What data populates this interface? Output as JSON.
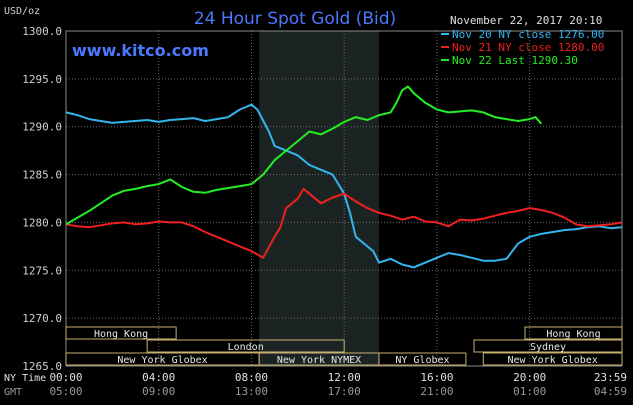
{
  "chart_data": {
    "type": "line",
    "title": "24 Hour Spot Gold (Bid)",
    "units_label": "USD/oz",
    "timestamp": "November 22, 2017 20:10",
    "watermark": "www.kitco.com",
    "ylim": [
      1265.0,
      1300.0
    ],
    "y_ticks": [
      "1300.0",
      "1295.0",
      "1290.0",
      "1285.0",
      "1280.0",
      "1275.0",
      "1270.0",
      "1265.0"
    ],
    "x_axis_rows": [
      {
        "label": "NY Time",
        "ticks": [
          "00:00",
          "04:00",
          "08:00",
          "12:00",
          "16:00",
          "20:00",
          "23:59"
        ]
      },
      {
        "label": "GMT",
        "ticks": [
          "05:00",
          "09:00",
          "13:00",
          "17:00",
          "21:00",
          "01:00",
          "04:59"
        ]
      }
    ],
    "session_markets": [
      {
        "name": "Hong Kong",
        "row": 0,
        "start": 0.0,
        "end": 4.75
      },
      {
        "name": "Hong Kong",
        "row": 0,
        "start": 19.8,
        "end": 23.983
      },
      {
        "name": "London",
        "row": 1,
        "start": 3.5,
        "end": 12.0
      },
      {
        "name": "Sydney",
        "row": 1,
        "start": 17.6,
        "end": 23.983
      },
      {
        "name": "New York Globex",
        "row": 2,
        "start": 0.0,
        "end": 8.33
      },
      {
        "name": "New York NYMEX",
        "row": 2,
        "start": 8.33,
        "end": 13.5
      },
      {
        "name": "NY Globex",
        "row": 2,
        "start": 13.5,
        "end": 17.25
      },
      {
        "name": "New York Globex",
        "row": 2,
        "start": 18.0,
        "end": 23.983
      }
    ],
    "highlight_range": [
      8.33,
      13.5
    ],
    "colors": {
      "background": "#000000",
      "grid": "#6b6b6b",
      "title": "#4a78ff",
      "axis_text": "#d0d0d0",
      "market_box": "#c8b070",
      "highlight": "#1c2423"
    },
    "series": [
      {
        "name": "Nov 20 NY close 1276.00",
        "color": "#33b5ee",
        "x": [
          0,
          0.5,
          1,
          1.5,
          2,
          2.5,
          3,
          3.5,
          4,
          4.5,
          5,
          5.5,
          6,
          6.5,
          7,
          7.5,
          8,
          8.25,
          8.75,
          9,
          9.5,
          10,
          10.5,
          11,
          11.5,
          12,
          12.25,
          12.5,
          13,
          13.25,
          13.5,
          14,
          14.5,
          15,
          15.5,
          16,
          16.5,
          17,
          17.5,
          18,
          18.5,
          19,
          19.5,
          20,
          20.5,
          21,
          21.5,
          22,
          22.5,
          23,
          23.5,
          23.983
        ],
        "y": [
          1291.5,
          1291.2,
          1290.8,
          1290.6,
          1290.4,
          1290.5,
          1290.6,
          1290.7,
          1290.5,
          1290.7,
          1290.8,
          1290.9,
          1290.6,
          1290.8,
          1291.0,
          1291.8,
          1292.3,
          1291.8,
          1289.5,
          1288.0,
          1287.5,
          1287.0,
          1286.0,
          1285.5,
          1285.0,
          1283.0,
          1281.0,
          1278.5,
          1277.5,
          1277.0,
          1275.8,
          1276.2,
          1275.6,
          1275.3,
          1275.8,
          1276.3,
          1276.8,
          1276.6,
          1276.3,
          1276.0,
          1276.0,
          1276.2,
          1277.8,
          1278.5,
          1278.8,
          1279.0,
          1279.2,
          1279.3,
          1279.5,
          1279.6,
          1279.4,
          1279.5
        ]
      },
      {
        "name": "Nov 21 NY close 1280.00",
        "color": "#ee2020",
        "x": [
          0,
          0.5,
          1,
          1.5,
          2,
          2.5,
          3,
          3.5,
          4,
          4.5,
          5,
          5.5,
          6,
          6.5,
          7,
          7.5,
          8,
          8.5,
          9,
          9.25,
          9.5,
          10,
          10.25,
          10.5,
          11,
          11.5,
          12,
          12.5,
          13,
          13.5,
          14,
          14.5,
          15,
          15.5,
          16,
          16.5,
          17,
          17.5,
          18,
          18.5,
          19,
          19.5,
          20,
          20.5,
          21,
          21.5,
          22,
          22.5,
          23,
          23.5,
          23.983
        ],
        "y": [
          1279.8,
          1279.6,
          1279.5,
          1279.7,
          1279.9,
          1280.0,
          1279.8,
          1279.9,
          1280.1,
          1280.0,
          1280.0,
          1279.6,
          1279.0,
          1278.5,
          1278.0,
          1277.5,
          1277.0,
          1276.3,
          1278.5,
          1279.5,
          1281.5,
          1282.5,
          1283.5,
          1283.0,
          1282.0,
          1282.6,
          1283.0,
          1282.2,
          1281.5,
          1281.0,
          1280.7,
          1280.3,
          1280.6,
          1280.1,
          1280.0,
          1279.6,
          1280.3,
          1280.2,
          1280.4,
          1280.7,
          1281.0,
          1281.2,
          1281.5,
          1281.3,
          1281.0,
          1280.5,
          1279.8,
          1279.6,
          1279.7,
          1279.8,
          1280.0
        ]
      },
      {
        "name": "Nov 22 Last 1290.30",
        "color": "#22ee22",
        "x": [
          0,
          0.5,
          1,
          1.5,
          2,
          2.5,
          3,
          3.5,
          4,
          4.5,
          5,
          5.5,
          6,
          6.5,
          7,
          7.5,
          8,
          8.5,
          9,
          9.5,
          10,
          10.5,
          11,
          11.5,
          12,
          12.5,
          13,
          13.5,
          14,
          14.25,
          14.5,
          14.75,
          15,
          15.5,
          16,
          16.5,
          17,
          17.5,
          18,
          18.5,
          19,
          19.5,
          20,
          20.25,
          20.5
        ],
        "y": [
          1279.8,
          1280.5,
          1281.2,
          1282.0,
          1282.8,
          1283.3,
          1283.5,
          1283.8,
          1284.0,
          1284.5,
          1283.7,
          1283.2,
          1283.1,
          1283.4,
          1283.6,
          1283.8,
          1284.0,
          1285.0,
          1286.5,
          1287.5,
          1288.5,
          1289.5,
          1289.2,
          1289.8,
          1290.5,
          1291.0,
          1290.7,
          1291.2,
          1291.5,
          1292.5,
          1293.8,
          1294.2,
          1293.5,
          1292.5,
          1291.8,
          1291.5,
          1291.6,
          1291.7,
          1291.5,
          1291.0,
          1290.8,
          1290.6,
          1290.8,
          1291.0,
          1290.3
        ]
      }
    ]
  }
}
